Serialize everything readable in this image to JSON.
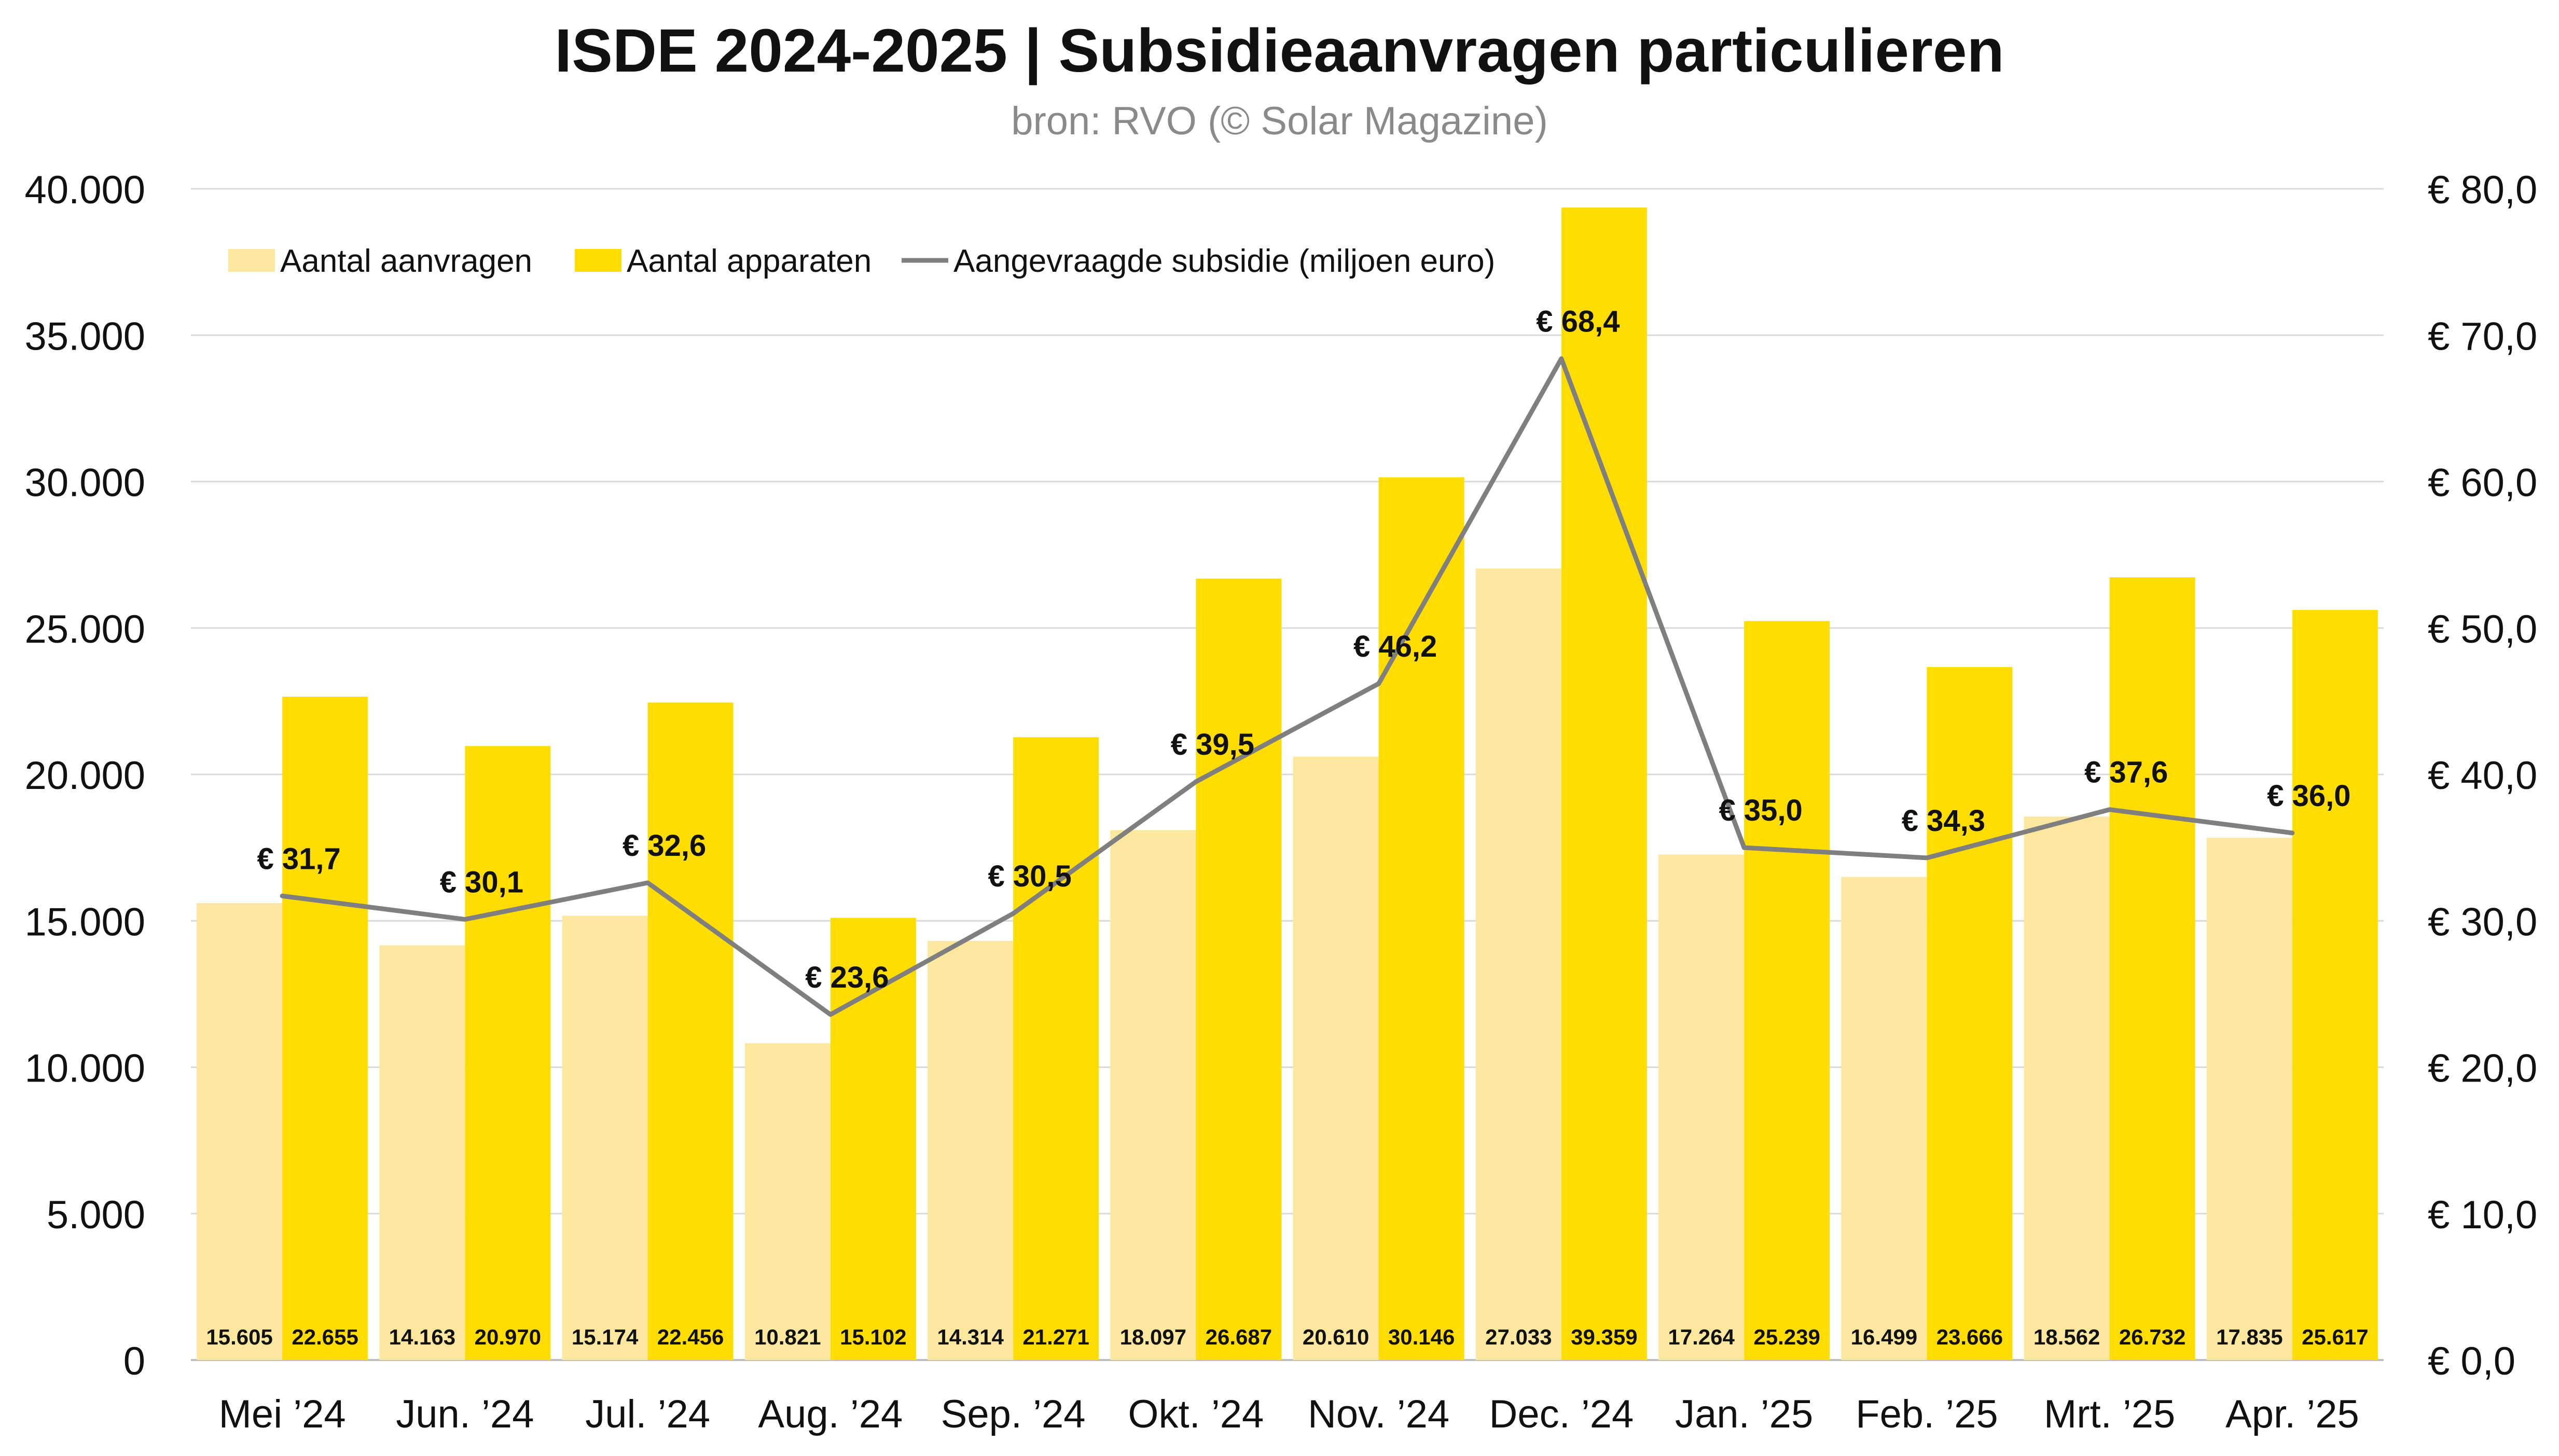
{
  "chart_data": {
    "type": "bar",
    "title": "ISDE 2024-2025 | Subsidieaanvragen particulieren",
    "subtitle": "bron: RVO (© Solar Magazine)",
    "categories": [
      "Mei ’24",
      "Jun. ’24",
      "Jul. ’24",
      "Aug. ’24",
      "Sep. ’24",
      "Okt. ’24",
      "Nov. ’24",
      "Dec. ’24",
      "Jan. ’25",
      "Feb. ’25",
      "Mrt. ’25",
      "Apr. ’25"
    ],
    "series": [
      {
        "name": "Aantal aanvragen",
        "type": "bar",
        "axis": "left",
        "color": "#FBE79E",
        "values": [
          15605,
          14163,
          15174,
          10821,
          14314,
          18097,
          20610,
          27033,
          17264,
          16499,
          18562,
          17835
        ],
        "labels": [
          "15.605",
          "14.163",
          "15.174",
          "10.821",
          "14.314",
          "18.097",
          "20.610",
          "27.033",
          "17.264",
          "16.499",
          "18.562",
          "17.835"
        ]
      },
      {
        "name": "Aantal apparaten",
        "type": "bar",
        "axis": "left",
        "color": "#FFDD00",
        "values": [
          22655,
          20970,
          22456,
          15102,
          21271,
          26687,
          30146,
          39359,
          25239,
          23666,
          26732,
          25617
        ],
        "labels": [
          "22.655",
          "20.970",
          "22.456",
          "15.102",
          "21.271",
          "26.687",
          "30.146",
          "39.359",
          "25.239",
          "23.666",
          "26.732",
          "25.617"
        ]
      },
      {
        "name": "Aangevraagde subsidie (miljoen euro)",
        "type": "line",
        "axis": "right",
        "color": "#7F7F7F",
        "values": [
          31.7,
          30.1,
          32.6,
          23.6,
          30.5,
          39.5,
          46.2,
          68.4,
          35.0,
          34.3,
          37.6,
          36.0
        ],
        "labels": [
          "€ 31,7",
          "€ 30,1",
          "€ 32,6",
          "€ 23,6",
          "€ 30,5",
          "€ 39,5",
          "€ 46,2",
          "€ 68,4",
          "€ 35,0",
          "€ 34,3",
          "€ 37,6",
          "€ 36,0"
        ]
      }
    ],
    "y_left": {
      "range": [
        0,
        40000
      ],
      "ticks": [
        0,
        5000,
        10000,
        15000,
        20000,
        25000,
        30000,
        35000,
        40000
      ],
      "tick_labels": [
        "0",
        "5.000",
        "10.000",
        "15.000",
        "20.000",
        "25.000",
        "30.000",
        "35.000",
        "40.000"
      ]
    },
    "y_right": {
      "range": [
        0,
        80
      ],
      "ticks": [
        0,
        10,
        20,
        30,
        40,
        50,
        60,
        70,
        80
      ],
      "tick_labels": [
        "€ 0,0",
        "€ 10,0",
        "€ 20,0",
        "€ 30,0",
        "€ 40,0",
        "€ 50,0",
        "€ 60,0",
        "€ 70,0",
        "€ 80,0"
      ]
    },
    "grid": true,
    "legend": "top-left"
  }
}
